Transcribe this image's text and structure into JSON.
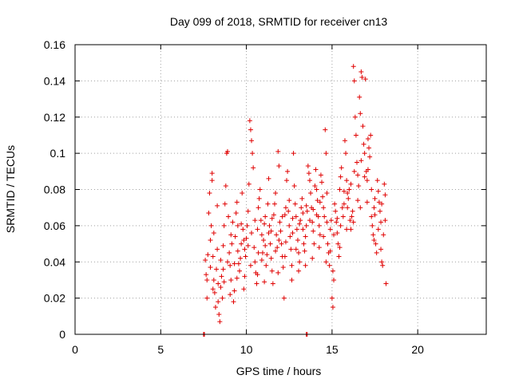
{
  "chart_data": {
    "type": "scatter",
    "title": "Day 099 of 2018, SRMTID for receiver cn13",
    "xlabel": "GPS time / hours",
    "ylabel": "SRMTID / TECUs",
    "xlim": [
      0,
      24
    ],
    "ylim": [
      0,
      0.16
    ],
    "xticks": [
      0,
      5,
      10,
      15,
      20
    ],
    "xtick_labels": [
      "0",
      "5",
      "10",
      "15",
      "20"
    ],
    "yticks": [
      0,
      0.02,
      0.04,
      0.06,
      0.08,
      0.1,
      0.12,
      0.14,
      0.16
    ],
    "ytick_labels": [
      "0",
      "0.02",
      "0.04",
      "0.06",
      "0.08",
      "0.1",
      "0.12",
      "0.14",
      "0.16"
    ],
    "grid": true,
    "series": [
      {
        "name": "SRMTID",
        "color": "#e00000",
        "marker": "plus",
        "points": [
          [
            7.5,
            0.0
          ],
          [
            7.55,
            0.0
          ],
          [
            13.5,
            0.0
          ],
          [
            13.55,
            0.0
          ],
          [
            7.6,
            0.041
          ],
          [
            7.65,
            0.033
          ],
          [
            7.7,
            0.02
          ],
          [
            7.75,
            0.044
          ],
          [
            7.8,
            0.067
          ],
          [
            7.85,
            0.078
          ],
          [
            7.9,
            0.052
          ],
          [
            7.95,
            0.06
          ],
          [
            8.0,
            0.085
          ],
          [
            8.0,
            0.089
          ],
          [
            8.05,
            0.043
          ],
          [
            8.1,
            0.03
          ],
          [
            8.15,
            0.023
          ],
          [
            8.2,
            0.015
          ],
          [
            8.25,
            0.036
          ],
          [
            8.3,
            0.071
          ],
          [
            8.35,
            0.028
          ],
          [
            8.4,
            0.011
          ],
          [
            8.45,
            0.007
          ],
          [
            8.5,
            0.026
          ],
          [
            8.55,
            0.032
          ],
          [
            8.6,
            0.02
          ],
          [
            8.65,
            0.049
          ],
          [
            8.7,
            0.06
          ],
          [
            8.75,
            0.072
          ],
          [
            8.8,
            0.082
          ],
          [
            8.85,
            0.1
          ],
          [
            8.9,
            0.101
          ],
          [
            8.95,
            0.065
          ],
          [
            9.0,
            0.045
          ],
          [
            9.05,
            0.038
          ],
          [
            9.1,
            0.03
          ],
          [
            9.15,
            0.05
          ],
          [
            9.2,
            0.062
          ],
          [
            9.25,
            0.018
          ],
          [
            9.3,
            0.024
          ],
          [
            9.35,
            0.054
          ],
          [
            9.4,
            0.067
          ],
          [
            9.45,
            0.073
          ],
          [
            9.5,
            0.046
          ],
          [
            9.55,
            0.039
          ],
          [
            9.6,
            0.035
          ],
          [
            9.65,
            0.042
          ],
          [
            9.7,
            0.05
          ],
          [
            9.75,
            0.078
          ],
          [
            9.8,
            0.058
          ],
          [
            9.85,
            0.052
          ],
          [
            9.9,
            0.032
          ],
          [
            9.95,
            0.043
          ],
          [
            10.0,
            0.053
          ],
          [
            10.05,
            0.06
          ],
          [
            10.1,
            0.068
          ],
          [
            10.15,
            0.083
          ],
          [
            10.2,
            0.118
          ],
          [
            10.25,
            0.113
          ],
          [
            10.3,
            0.107
          ],
          [
            10.35,
            0.1
          ],
          [
            10.4,
            0.092
          ],
          [
            10.45,
            0.048
          ],
          [
            10.5,
            0.04
          ],
          [
            10.55,
            0.034
          ],
          [
            10.6,
            0.028
          ],
          [
            10.65,
            0.058
          ],
          [
            10.7,
            0.07
          ],
          [
            10.75,
            0.075
          ],
          [
            10.8,
            0.08
          ],
          [
            10.85,
            0.063
          ],
          [
            10.9,
            0.055
          ],
          [
            10.95,
            0.045
          ],
          [
            11.0,
            0.052
          ],
          [
            11.05,
            0.061
          ],
          [
            11.1,
            0.065
          ],
          [
            11.15,
            0.038
          ],
          [
            11.2,
            0.044
          ],
          [
            11.25,
            0.072
          ],
          [
            11.3,
            0.086
          ],
          [
            11.35,
            0.06
          ],
          [
            11.4,
            0.05
          ],
          [
            11.45,
            0.042
          ],
          [
            11.5,
            0.035
          ],
          [
            11.55,
            0.028
          ],
          [
            11.6,
            0.066
          ],
          [
            11.65,
            0.072
          ],
          [
            11.7,
            0.078
          ],
          [
            11.75,
            0.055
          ],
          [
            11.8,
            0.048
          ],
          [
            11.85,
            0.101
          ],
          [
            11.9,
            0.093
          ],
          [
            11.95,
            0.062
          ],
          [
            12.0,
            0.057
          ],
          [
            12.05,
            0.05
          ],
          [
            12.1,
            0.043
          ],
          [
            12.15,
            0.037
          ],
          [
            12.2,
            0.02
          ],
          [
            12.25,
            0.066
          ],
          [
            12.3,
            0.07
          ],
          [
            12.35,
            0.085
          ],
          [
            12.4,
            0.09
          ],
          [
            12.45,
            0.068
          ],
          [
            12.5,
            0.06
          ],
          [
            12.55,
            0.054
          ],
          [
            12.6,
            0.047
          ],
          [
            12.65,
            0.03
          ],
          [
            12.7,
            0.064
          ],
          [
            12.75,
            0.1
          ],
          [
            12.8,
            0.082
          ],
          [
            12.85,
            0.072
          ],
          [
            12.9,
            0.065
          ],
          [
            12.95,
            0.058
          ],
          [
            13.0,
            0.052
          ],
          [
            13.05,
            0.045
          ],
          [
            13.1,
            0.04
          ],
          [
            13.15,
            0.063
          ],
          [
            13.2,
            0.07
          ],
          [
            13.25,
            0.075
          ],
          [
            13.3,
            0.058
          ],
          [
            13.35,
            0.05
          ],
          [
            13.4,
            0.046
          ],
          [
            13.45,
            0.038
          ],
          [
            13.5,
            0.06
          ],
          [
            13.55,
            0.068
          ],
          [
            13.6,
            0.093
          ],
          [
            13.65,
            0.089
          ],
          [
            13.7,
            0.085
          ],
          [
            13.75,
            0.078
          ],
          [
            13.8,
            0.07
          ],
          [
            13.85,
            0.062
          ],
          [
            13.9,
            0.057
          ],
          [
            13.95,
            0.05
          ],
          [
            14.0,
            0.082
          ],
          [
            14.05,
            0.091
          ],
          [
            14.1,
            0.08
          ],
          [
            14.15,
            0.074
          ],
          [
            14.2,
            0.065
          ],
          [
            14.25,
            0.06
          ],
          [
            14.3,
            0.055
          ],
          [
            14.35,
            0.088
          ],
          [
            14.4,
            0.084
          ],
          [
            14.45,
            0.076
          ],
          [
            14.5,
            0.07
          ],
          [
            14.55,
            0.065
          ],
          [
            14.6,
            0.113
          ],
          [
            14.65,
            0.1
          ],
          [
            14.7,
            0.078
          ],
          [
            14.75,
            0.05
          ],
          [
            14.8,
            0.045
          ],
          [
            14.85,
            0.038
          ],
          [
            14.9,
            0.058
          ],
          [
            14.95,
            0.063
          ],
          [
            15.0,
            0.02
          ],
          [
            15.05,
            0.015
          ],
          [
            15.1,
            0.03
          ],
          [
            15.15,
            0.072
          ],
          [
            15.2,
            0.068
          ],
          [
            15.25,
            0.062
          ],
          [
            15.3,
            0.056
          ],
          [
            15.35,
            0.05
          ],
          [
            15.4,
            0.043
          ],
          [
            15.45,
            0.08
          ],
          [
            15.5,
            0.087
          ],
          [
            15.55,
            0.092
          ],
          [
            15.6,
            0.07
          ],
          [
            15.65,
            0.065
          ],
          [
            15.7,
            0.072
          ],
          [
            15.75,
            0.107
          ],
          [
            15.8,
            0.1
          ],
          [
            15.85,
            0.085
          ],
          [
            15.9,
            0.078
          ],
          [
            15.95,
            0.075
          ],
          [
            16.0,
            0.08
          ],
          [
            16.05,
            0.063
          ],
          [
            16.1,
            0.058
          ],
          [
            16.15,
            0.065
          ],
          [
            16.2,
            0.068
          ],
          [
            16.25,
            0.148
          ],
          [
            16.3,
            0.14
          ],
          [
            16.35,
            0.12
          ],
          [
            16.4,
            0.11
          ],
          [
            16.45,
            0.095
          ],
          [
            16.5,
            0.088
          ],
          [
            16.55,
            0.082
          ],
          [
            16.6,
            0.131
          ],
          [
            16.65,
            0.122
          ],
          [
            16.7,
            0.145
          ],
          [
            16.75,
            0.142
          ],
          [
            16.8,
            0.115
          ],
          [
            16.85,
            0.105
          ],
          [
            16.9,
            0.1
          ],
          [
            16.95,
            0.141
          ],
          [
            17.0,
            0.09
          ],
          [
            17.05,
            0.085
          ],
          [
            17.1,
            0.108
          ],
          [
            17.15,
            0.103
          ],
          [
            17.2,
            0.098
          ],
          [
            17.25,
            0.11
          ],
          [
            17.3,
            0.065
          ],
          [
            17.35,
            0.06
          ],
          [
            17.4,
            0.055
          ],
          [
            17.45,
            0.07
          ],
          [
            17.5,
            0.075
          ],
          [
            17.55,
            0.05
          ],
          [
            17.6,
            0.045
          ],
          [
            17.65,
            0.085
          ],
          [
            17.7,
            0.079
          ],
          [
            17.75,
            0.073
          ],
          [
            17.8,
            0.068
          ],
          [
            17.85,
            0.062
          ],
          [
            17.9,
            0.04
          ],
          [
            17.95,
            0.038
          ],
          [
            18.0,
            0.055
          ],
          [
            18.05,
            0.083
          ],
          [
            18.1,
            0.077
          ],
          [
            18.15,
            0.028
          ],
          [
            7.7,
            0.03
          ],
          [
            7.9,
            0.037
          ],
          [
            8.1,
            0.056
          ],
          [
            8.3,
            0.047
          ],
          [
            8.5,
            0.041
          ],
          [
            8.7,
            0.029
          ],
          [
            8.9,
            0.04
          ],
          [
            9.1,
            0.055
          ],
          [
            9.3,
            0.039
          ],
          [
            9.5,
            0.06
          ],
          [
            9.7,
            0.061
          ],
          [
            9.9,
            0.047
          ],
          [
            10.1,
            0.049
          ],
          [
            10.3,
            0.056
          ],
          [
            10.5,
            0.063
          ],
          [
            10.7,
            0.045
          ],
          [
            10.9,
            0.041
          ],
          [
            11.1,
            0.049
          ],
          [
            11.3,
            0.056
          ],
          [
            11.5,
            0.064
          ],
          [
            11.7,
            0.046
          ],
          [
            11.9,
            0.052
          ],
          [
            12.1,
            0.065
          ],
          [
            12.3,
            0.051
          ],
          [
            12.5,
            0.074
          ],
          [
            12.7,
            0.056
          ],
          [
            12.9,
            0.047
          ],
          [
            13.1,
            0.061
          ],
          [
            13.3,
            0.067
          ],
          [
            13.5,
            0.071
          ],
          [
            13.7,
            0.063
          ],
          [
            13.9,
            0.069
          ],
          [
            14.1,
            0.066
          ],
          [
            14.3,
            0.073
          ],
          [
            14.5,
            0.054
          ],
          [
            14.7,
            0.062
          ],
          [
            14.9,
            0.046
          ],
          [
            15.1,
            0.055
          ],
          [
            15.3,
            0.064
          ],
          [
            15.5,
            0.06
          ],
          [
            15.7,
            0.079
          ],
          [
            15.9,
            0.07
          ],
          [
            16.1,
            0.083
          ],
          [
            16.3,
            0.09
          ],
          [
            16.5,
            0.074
          ],
          [
            16.7,
            0.096
          ],
          [
            16.9,
            0.087
          ],
          [
            17.1,
            0.091
          ],
          [
            17.3,
            0.08
          ],
          [
            17.5,
            0.066
          ],
          [
            17.7,
            0.058
          ],
          [
            17.9,
            0.072
          ],
          [
            18.1,
            0.063
          ],
          [
            8.05,
            0.025
          ],
          [
            8.35,
            0.018
          ],
          [
            8.65,
            0.036
          ],
          [
            9.05,
            0.022
          ],
          [
            9.45,
            0.031
          ],
          [
            9.85,
            0.025
          ],
          [
            10.25,
            0.038
          ],
          [
            10.65,
            0.033
          ],
          [
            11.05,
            0.029
          ],
          [
            11.45,
            0.057
          ],
          [
            11.85,
            0.034
          ],
          [
            12.25,
            0.043
          ],
          [
            12.65,
            0.038
          ],
          [
            13.05,
            0.035
          ],
          [
            13.45,
            0.054
          ],
          [
            13.85,
            0.042
          ],
          [
            14.25,
            0.048
          ],
          [
            14.65,
            0.04
          ],
          [
            15.05,
            0.035
          ],
          [
            15.45,
            0.048
          ],
          [
            15.85,
            0.058
          ],
          [
            16.25,
            0.062
          ],
          [
            16.65,
            0.07
          ],
          [
            17.05,
            0.073
          ],
          [
            17.45,
            0.052
          ],
          [
            17.85,
            0.047
          ]
        ]
      }
    ]
  }
}
